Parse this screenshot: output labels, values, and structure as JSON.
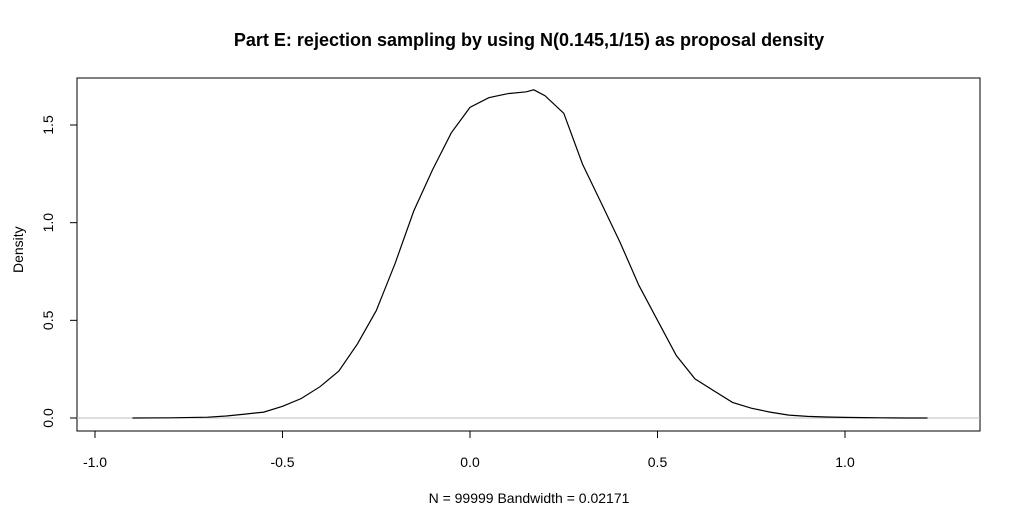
{
  "chart_data": {
    "type": "line",
    "title": "Part E: rejection sampling by using N(0.145,1/15) as proposal density",
    "xlabel": "N = 99999   Bandwidth = 0.02171",
    "ylabel": "Density",
    "xlim": [
      -1.0,
      1.3
    ],
    "ylim": [
      0.0,
      1.7
    ],
    "x_ticks": [
      -1.0,
      -0.5,
      0.0,
      0.5,
      1.0
    ],
    "x_tick_labels": [
      "-1.0",
      "-0.5",
      "0.0",
      "0.5",
      "1.0"
    ],
    "y_ticks": [
      0.0,
      0.5,
      1.0,
      1.5
    ],
    "y_tick_labels": [
      "0.0",
      "0.5",
      "1.0",
      "1.5"
    ],
    "baseline": 0.0,
    "baseline_color": "#bebebe",
    "line_color": "#000000",
    "series": [
      {
        "x": [
          -0.9,
          -0.8,
          -0.7,
          -0.65,
          -0.6,
          -0.55,
          -0.5,
          -0.45,
          -0.4,
          -0.35,
          -0.3,
          -0.25,
          -0.2,
          -0.15,
          -0.1,
          -0.05,
          0.0,
          0.05,
          0.1,
          0.15,
          0.17,
          0.2,
          0.25,
          0.3,
          0.35,
          0.4,
          0.45,
          0.5,
          0.55,
          0.6,
          0.65,
          0.7,
          0.75,
          0.8,
          0.85,
          0.9,
          0.95,
          1.0,
          1.05,
          1.1,
          1.16,
          1.18,
          1.22
        ],
        "values": [
          0.0,
          0.001,
          0.004,
          0.01,
          0.02,
          0.03,
          0.06,
          0.1,
          0.16,
          0.24,
          0.38,
          0.55,
          0.79,
          1.06,
          1.27,
          1.46,
          1.59,
          1.64,
          1.66,
          1.67,
          1.68,
          1.65,
          1.56,
          1.3,
          1.1,
          0.9,
          0.68,
          0.5,
          0.32,
          0.2,
          0.14,
          0.08,
          0.05,
          0.03,
          0.015,
          0.008,
          0.005,
          0.003,
          0.002,
          0.001,
          0.0,
          0.0,
          0.0
        ]
      }
    ]
  }
}
